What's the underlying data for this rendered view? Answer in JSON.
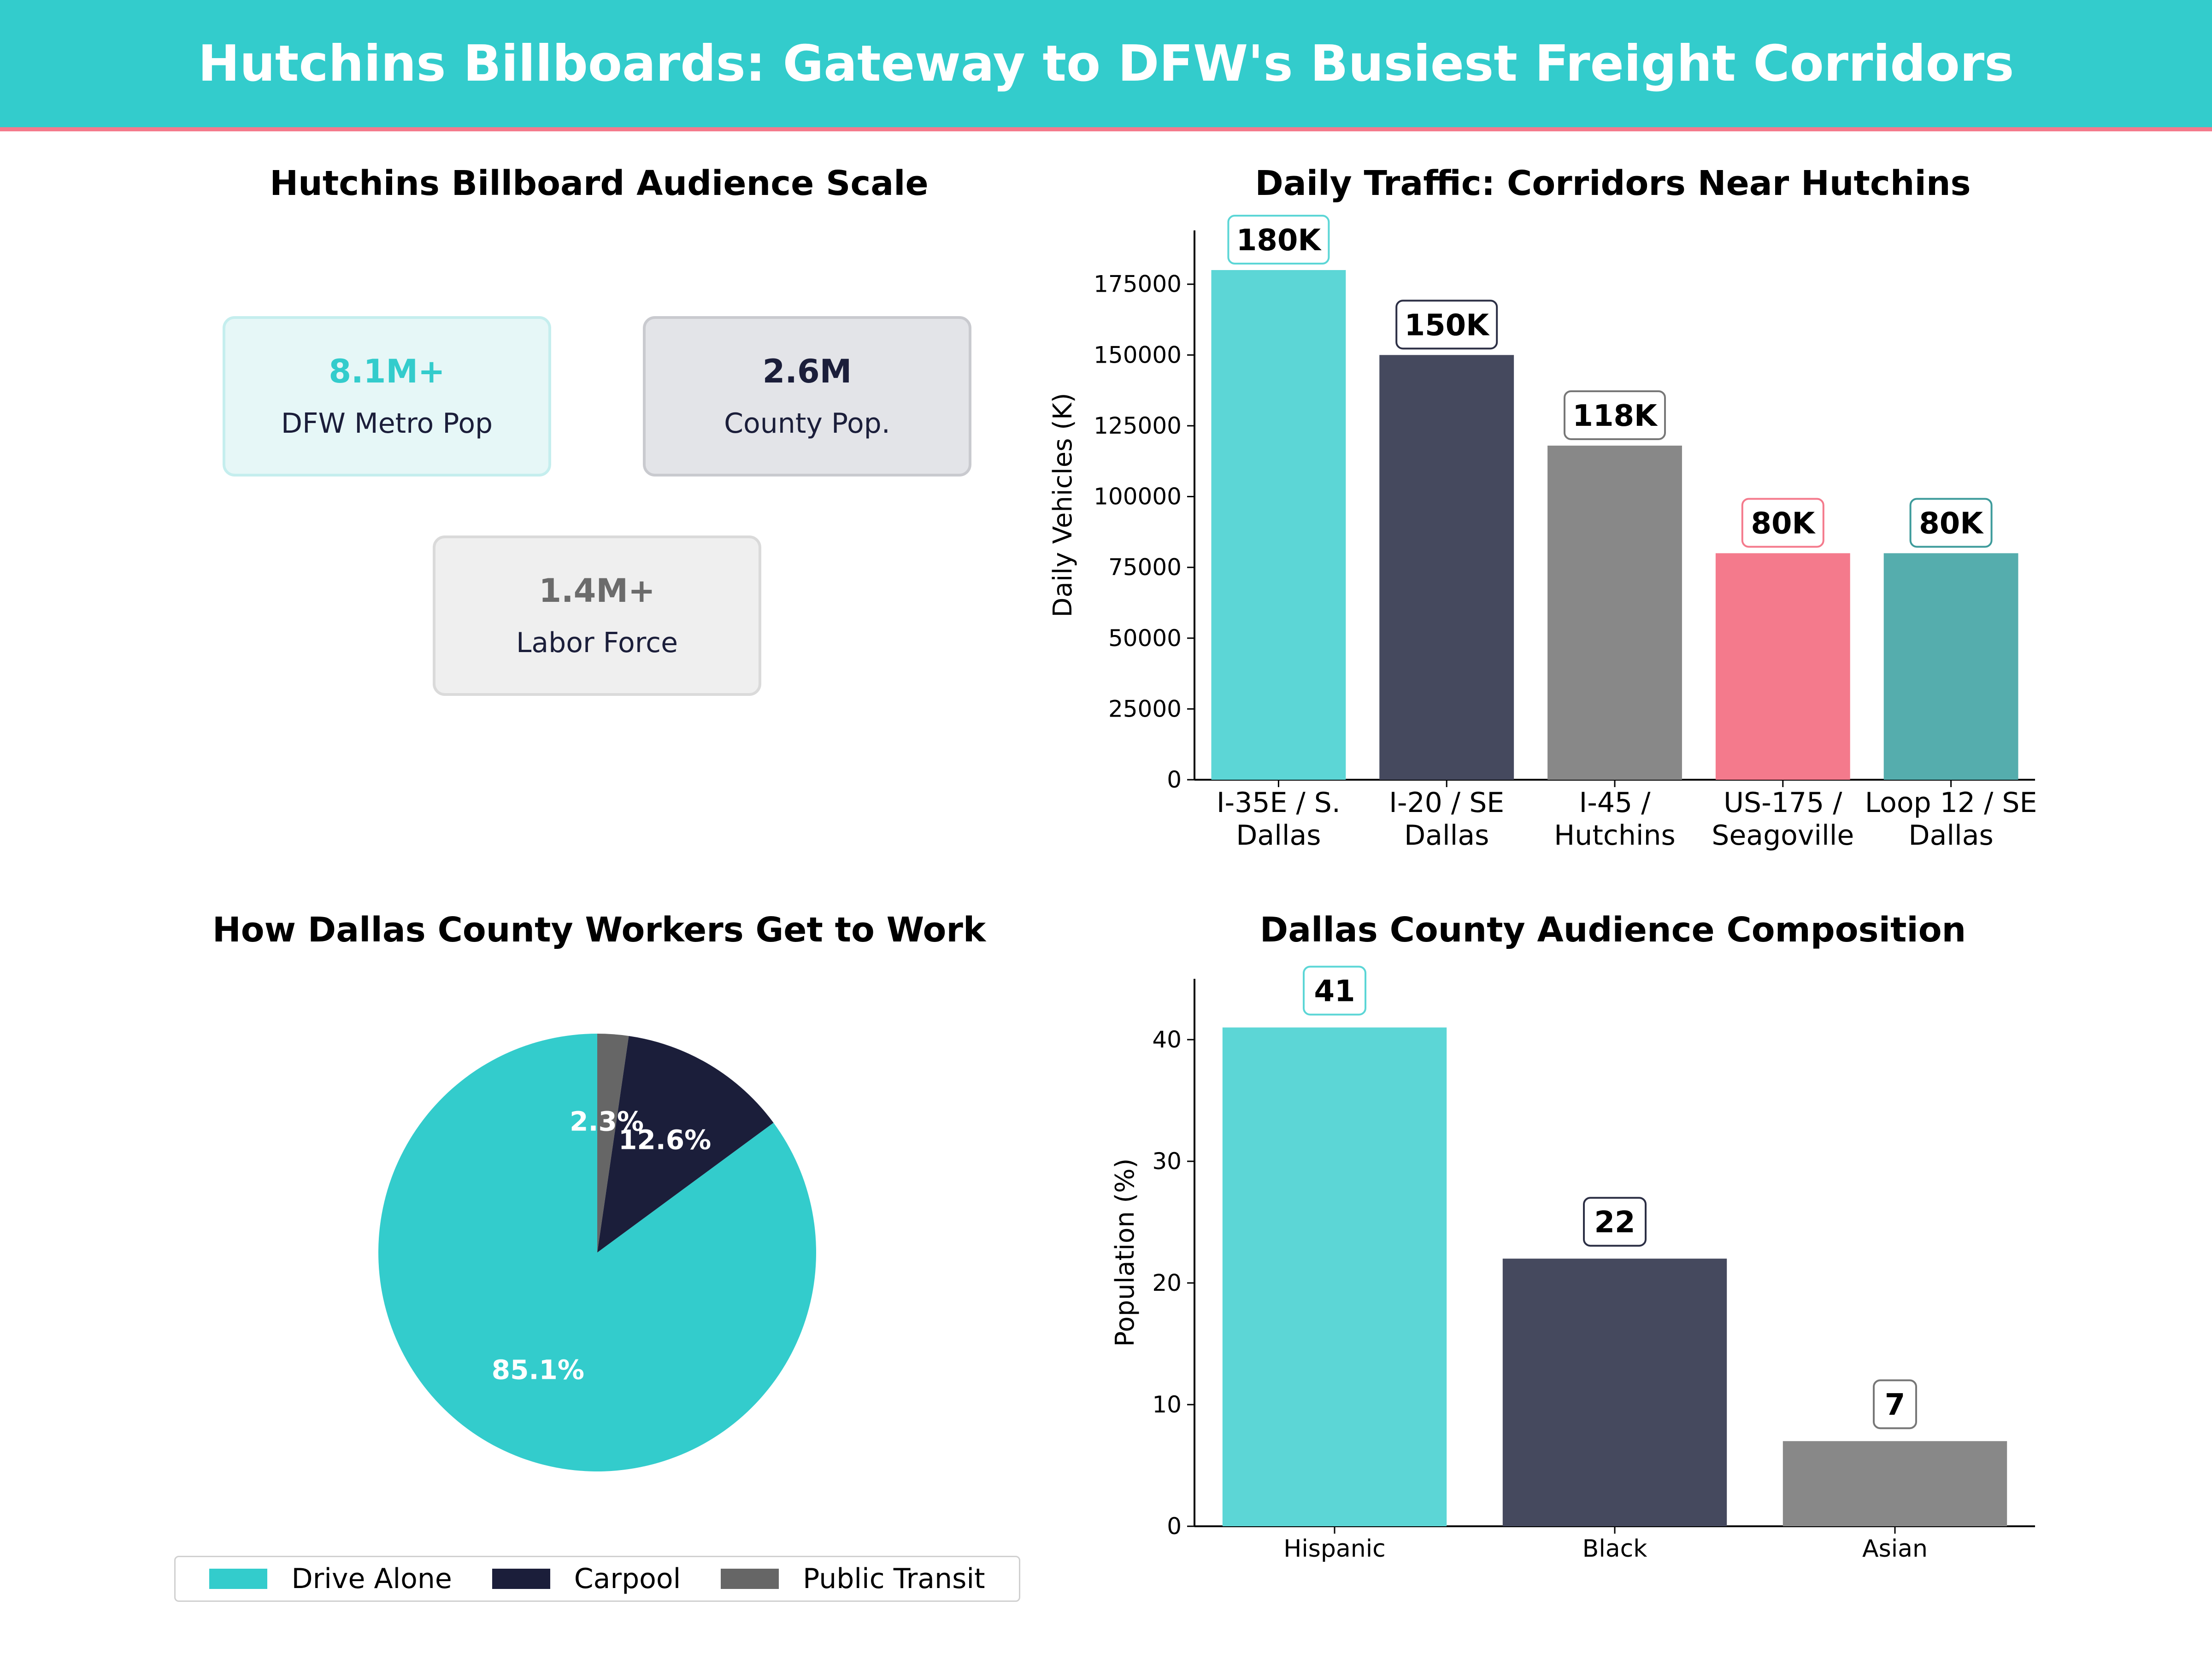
{
  "header": {
    "title": "Hutchins Billboards: Gateway to DFW's Busiest Freight Corridors",
    "bg_color": "#33cccc",
    "line_color": "#f47a8c"
  },
  "panels": {
    "audience": {
      "title": "Hutchins Billboard Audience Scale",
      "cards": [
        {
          "value": "8.1M+",
          "label": "DFW Metro Pop",
          "value_color": "#33cccc",
          "bg_color": "#e6f7f7",
          "border_color": "#c5eeee"
        },
        {
          "value": "2.6M",
          "label": "County Pop.",
          "value_color": "#1b1e3a",
          "bg_color": "#e3e4e8",
          "border_color": "#c9cacf"
        },
        {
          "value": "1.4M+",
          "label": "Labor Force",
          "value_color": "#6b6b6b",
          "bg_color": "#efefef",
          "border_color": "#dadada"
        }
      ]
    },
    "traffic": {
      "title": "Daily Traffic: Corridors Near Hutchins"
    },
    "commute": {
      "title": "How Dallas County Workers Get to Work"
    },
    "composition": {
      "title": "Dallas County Audience Composition"
    }
  },
  "chart_data": [
    {
      "type": "bar",
      "title": "Daily Traffic: Corridors Near Hutchins",
      "categories": [
        "I-35E / S.\nDallas",
        "I-20 / SE\nDallas",
        "I-45 /\nHutchins",
        "US-175 /\nSeagoville",
        "Loop 12 / SE\nDallas"
      ],
      "values": [
        180000,
        150000,
        118000,
        80000,
        80000
      ],
      "data_labels": [
        "180K",
        "150K",
        "118K",
        "80K",
        "80K"
      ],
      "colors": [
        "#5cd6d6",
        "#45495e",
        "#888888",
        "#f47a8c",
        "#55adad"
      ],
      "label_border_colors": [
        "#5cd6d6",
        "#2c2f45",
        "#777777",
        "#f47a8c",
        "#3d9b9b"
      ],
      "xlabel": "",
      "ylabel": "Daily Vehicles (K)",
      "ylim": [
        0,
        194000
      ],
      "yticks": [
        0,
        25000,
        50000,
        75000,
        100000,
        125000,
        150000,
        175000
      ],
      "grid": false
    },
    {
      "type": "pie",
      "title": "How Dallas County Workers Get to Work",
      "labels": [
        "Drive Alone",
        "Carpool",
        "Public Transit"
      ],
      "values": [
        85.1,
        12.6,
        2.3
      ],
      "value_labels": [
        "85.1%",
        "12.6%",
        "2.3%"
      ],
      "colors": [
        "#33cccc",
        "#1b1e3a",
        "#666666"
      ],
      "legend_position": "bottom"
    },
    {
      "type": "bar",
      "title": "Dallas County Audience Composition",
      "categories": [
        "Hispanic",
        "Black",
        "Asian"
      ],
      "values": [
        41,
        22,
        7
      ],
      "data_labels": [
        "41",
        "22",
        "7"
      ],
      "colors": [
        "#5cd6d6",
        "#45495e",
        "#888888"
      ],
      "label_border_colors": [
        "#5cd6d6",
        "#2c2f45",
        "#777777"
      ],
      "xlabel": "",
      "ylabel": "Population (%)",
      "ylim": [
        0,
        45
      ],
      "yticks": [
        0,
        10,
        20,
        30,
        40
      ],
      "grid": false
    }
  ]
}
